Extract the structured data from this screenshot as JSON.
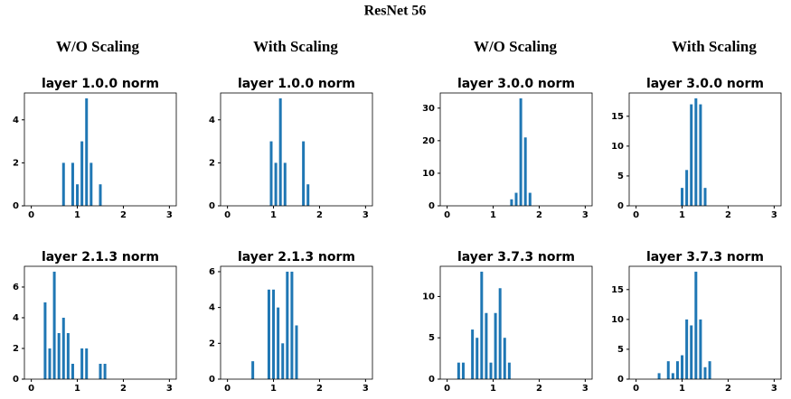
{
  "title": "ResNet 56",
  "column_headers": [
    "W/O Scaling",
    "With Scaling",
    "W/O Scaling",
    "With Scaling"
  ],
  "chart_data": [
    {
      "type": "bar",
      "title": "layer 1.0.0 norm",
      "color": "#1f77b4",
      "x": [
        0.7,
        0.9,
        1.0,
        1.1,
        1.2,
        1.3,
        1.5
      ],
      "values": [
        2,
        2,
        1,
        3,
        5,
        2,
        1
      ],
      "xlim": [
        -0.15,
        3.15
      ],
      "xticks": [
        0,
        1,
        2,
        3
      ],
      "ylim": [
        0,
        5.25
      ],
      "yticks": [
        0,
        2,
        4
      ]
    },
    {
      "type": "bar",
      "title": "layer 1.0.0 norm",
      "color": "#1f77b4",
      "x": [
        0.95,
        1.05,
        1.15,
        1.25,
        1.65,
        1.75
      ],
      "values": [
        3,
        2,
        5,
        2,
        3,
        1
      ],
      "xlim": [
        -0.15,
        3.15
      ],
      "xticks": [
        0,
        1,
        2,
        3
      ],
      "ylim": [
        0,
        5.25
      ],
      "yticks": [
        0,
        2,
        4
      ]
    },
    {
      "type": "bar",
      "title": "layer 3.0.0 norm",
      "color": "#1f77b4",
      "x": [
        1.4,
        1.5,
        1.6,
        1.7,
        1.8
      ],
      "values": [
        2,
        4,
        33,
        21,
        4
      ],
      "xlim": [
        -0.15,
        3.15
      ],
      "xticks": [
        0,
        1,
        2,
        3
      ],
      "ylim": [
        0,
        34.65
      ],
      "yticks": [
        0,
        10,
        20,
        30
      ]
    },
    {
      "type": "bar",
      "title": "layer 3.0.0 norm",
      "color": "#1f77b4",
      "x": [
        1.0,
        1.1,
        1.2,
        1.3,
        1.4,
        1.5
      ],
      "values": [
        3,
        6,
        17,
        18,
        17,
        3
      ],
      "xlim": [
        -0.15,
        3.15
      ],
      "xticks": [
        0,
        1,
        2,
        3
      ],
      "ylim": [
        0,
        18.9
      ],
      "yticks": [
        0,
        5,
        10,
        15
      ]
    },
    {
      "type": "bar",
      "title": "layer 2.1.3 norm",
      "color": "#1f77b4",
      "x": [
        0.3,
        0.4,
        0.5,
        0.6,
        0.7,
        0.8,
        0.9,
        1.1,
        1.2,
        1.5,
        1.6
      ],
      "values": [
        5,
        2,
        7,
        3,
        4,
        3,
        1,
        2,
        2,
        1,
        1
      ],
      "xlim": [
        -0.15,
        3.15
      ],
      "xticks": [
        0,
        1,
        2,
        3
      ],
      "ylim": [
        0,
        7.35
      ],
      "yticks": [
        0,
        2,
        4,
        6
      ]
    },
    {
      "type": "bar",
      "title": "layer 2.1.3 norm",
      "color": "#1f77b4",
      "x": [
        0.55,
        0.9,
        1.0,
        1.1,
        1.2,
        1.3,
        1.4,
        1.5
      ],
      "values": [
        1,
        5,
        5,
        4,
        2,
        6,
        6,
        3
      ],
      "xlim": [
        -0.15,
        3.15
      ],
      "xticks": [
        0,
        1,
        2,
        3
      ],
      "ylim": [
        0,
        6.3
      ],
      "yticks": [
        0,
        2,
        4,
        6
      ]
    },
    {
      "type": "bar",
      "title": "layer 3.7.3 norm",
      "color": "#1f77b4",
      "x": [
        0.25,
        0.35,
        0.55,
        0.65,
        0.75,
        0.85,
        0.95,
        1.05,
        1.15,
        1.25,
        1.35
      ],
      "values": [
        2,
        2,
        6,
        5,
        13,
        8,
        2,
        8,
        11,
        5,
        2
      ],
      "xlim": [
        -0.15,
        3.15
      ],
      "xticks": [
        0,
        1,
        2,
        3
      ],
      "ylim": [
        0,
        13.65
      ],
      "yticks": [
        0,
        5,
        10
      ]
    },
    {
      "type": "bar",
      "title": "layer 3.7.3 norm",
      "color": "#1f77b4",
      "x": [
        0.5,
        0.7,
        0.8,
        0.9,
        1.0,
        1.1,
        1.2,
        1.3,
        1.4,
        1.5,
        1.6
      ],
      "values": [
        1,
        3,
        1,
        3,
        4,
        10,
        9,
        18,
        10,
        2,
        3
      ],
      "xlim": [
        -0.15,
        3.15
      ],
      "xticks": [
        0,
        1,
        2,
        3
      ],
      "ylim": [
        0,
        18.9
      ],
      "yticks": [
        0,
        5,
        10,
        15
      ]
    }
  ]
}
